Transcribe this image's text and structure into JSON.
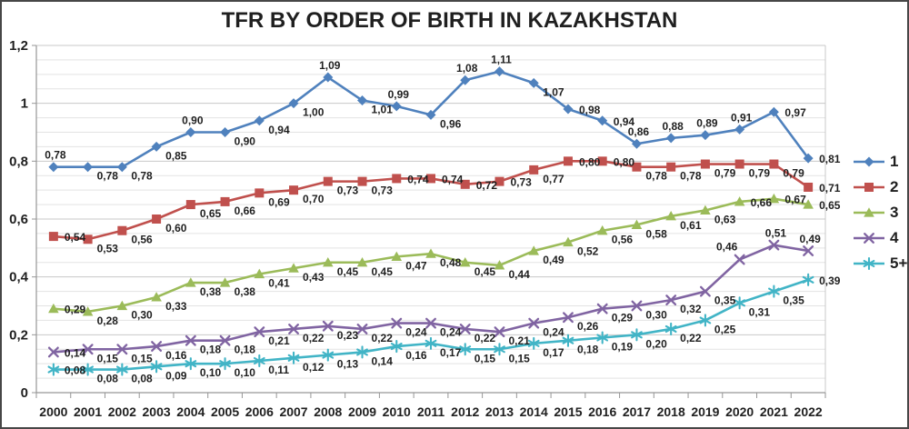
{
  "chart_data": {
    "type": "line",
    "title": "TFR BY ORDER OF BIRTH IN KAZAKHSTAN",
    "x_categories": [
      "2000",
      "2001",
      "2002",
      "2003",
      "2004",
      "2005",
      "2006",
      "2007",
      "2008",
      "2009",
      "2010",
      "2011",
      "2012",
      "2013",
      "2014",
      "2015",
      "2016",
      "2017",
      "2018",
      "2019",
      "2020",
      "2021",
      "2022"
    ],
    "xlabel": "",
    "ylabel": "",
    "ylim": [
      0,
      1.2
    ],
    "y_major_unit": 0.2,
    "y_minor_unit": 0.05,
    "y_tick_labels_top_to_bottom": [
      "1,2",
      "1",
      "0,8",
      "0,6",
      "0,4",
      "0,2",
      "0"
    ],
    "grid": "horizontal major and minor gridlines on",
    "legend_position": "right",
    "decimal_separator": ",",
    "data_labels_shown": true,
    "axis_color": "#969696",
    "major_grid_color": "#c8c8c8",
    "minor_grid_color": "#e3e3e3",
    "label_text_color": "#1f1f1f",
    "series": [
      {
        "name": "1",
        "marker": "diamond",
        "color": "#4F81BD",
        "values": [
          0.78,
          0.78,
          0.78,
          0.85,
          0.9,
          0.9,
          0.94,
          1.0,
          1.09,
          1.01,
          0.99,
          0.96,
          1.08,
          1.11,
          1.07,
          0.98,
          0.94,
          0.86,
          0.88,
          0.89,
          0.91,
          0.97,
          0.81
        ]
      },
      {
        "name": "2",
        "marker": "square",
        "color": "#C0504D",
        "values": [
          0.54,
          0.53,
          0.56,
          0.6,
          0.65,
          0.66,
          0.69,
          0.7,
          0.73,
          0.73,
          0.74,
          0.74,
          0.72,
          0.73,
          0.77,
          0.8,
          0.8,
          0.78,
          0.78,
          0.79,
          0.79,
          0.79,
          0.71
        ]
      },
      {
        "name": "3",
        "marker": "triangle",
        "color": "#9BBB59",
        "values": [
          0.29,
          0.28,
          0.3,
          0.33,
          0.38,
          0.38,
          0.41,
          0.43,
          0.45,
          0.45,
          0.47,
          0.48,
          0.45,
          0.44,
          0.49,
          0.52,
          0.56,
          0.58,
          0.61,
          0.63,
          0.66,
          0.67,
          0.65
        ]
      },
      {
        "name": "4",
        "marker": "x",
        "color": "#8064A2",
        "values": [
          0.14,
          0.15,
          0.15,
          0.16,
          0.18,
          0.18,
          0.21,
          0.22,
          0.23,
          0.22,
          0.24,
          0.24,
          0.22,
          0.21,
          0.24,
          0.26,
          0.29,
          0.3,
          0.32,
          0.35,
          0.46,
          0.51,
          0.49
        ]
      },
      {
        "name": "5+",
        "marker": "asterisk",
        "color": "#41B4C6",
        "values": [
          0.08,
          0.08,
          0.08,
          0.09,
          0.1,
          0.1,
          0.11,
          0.12,
          0.13,
          0.14,
          0.16,
          0.17,
          0.15,
          0.15,
          0.17,
          0.18,
          0.19,
          0.2,
          0.22,
          0.25,
          0.31,
          0.35,
          0.39
        ]
      }
    ]
  }
}
